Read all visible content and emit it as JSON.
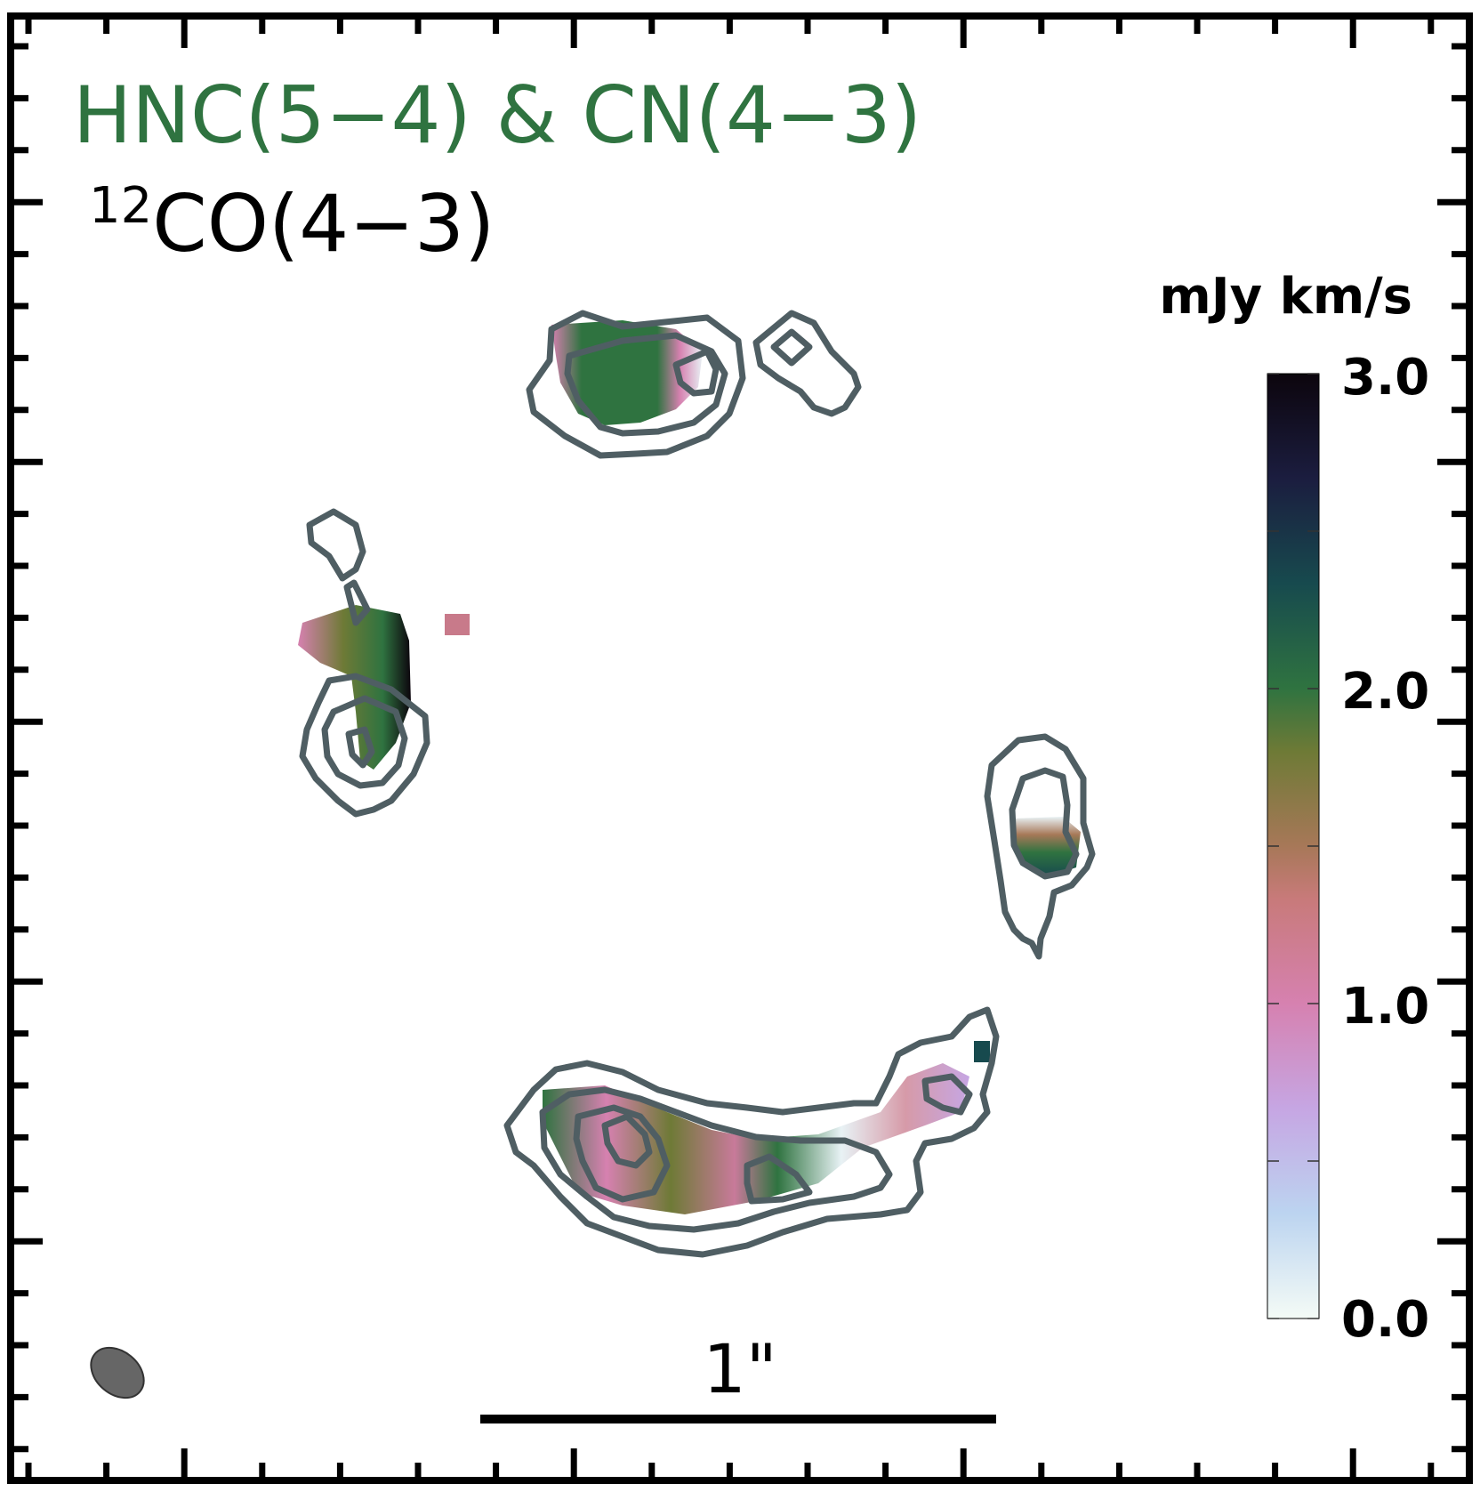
{
  "chart_data": {
    "type": "heatmap",
    "title_lines": [
      {
        "text": "HNC(5−4) & CN(4−3)",
        "color": "#2f7340"
      },
      {
        "sup": "12",
        "text": "CO(4−3)",
        "color": "#000000"
      }
    ],
    "colorbar": {
      "label": "mJy km/s",
      "ticks": [
        "0.0",
        "1.0",
        "2.0",
        "3.0"
      ],
      "tick_values": [
        0.0,
        1.0,
        2.0,
        3.0
      ],
      "range": [
        0.0,
        3.0
      ],
      "colormap": [
        "#f4fbf6",
        "#bcd4f0",
        "#c6a6e3",
        "#d681b0",
        "#a77858",
        "#6e7a36",
        "#2f7340",
        "#174a4e",
        "#1b1d3f",
        "#0c050d"
      ]
    },
    "scale_bar": {
      "label": "1\"",
      "arcsec": 1.0
    },
    "beam": {
      "color": "#666666"
    },
    "contour_color": "#4f5e63",
    "grid": false
  }
}
